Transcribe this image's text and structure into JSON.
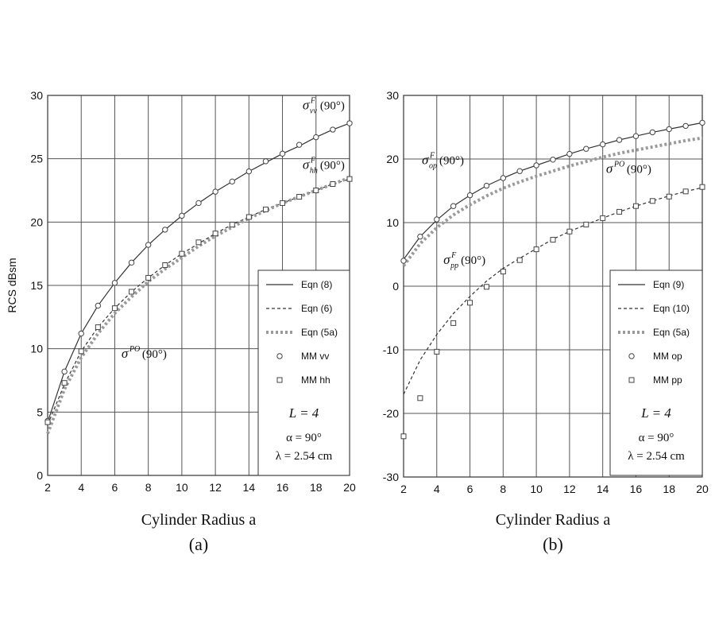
{
  "chart_data": [
    {
      "type": "line",
      "panel_label": "(a)",
      "xlabel": "Cylinder Radius a",
      "ylabel": "RCS dBsm",
      "xlim": [
        2,
        20
      ],
      "ylim": [
        0,
        30
      ],
      "xticks": [
        "2",
        "4",
        "6",
        "8",
        "10",
        "12",
        "14",
        "16",
        "18",
        "20"
      ],
      "yticks": [
        "0",
        "5",
        "10",
        "15",
        "20",
        "25",
        "30"
      ],
      "grid": true,
      "legend_position": "bottom-right",
      "series": [
        {
          "name": "Eqn (8)",
          "style": "solid",
          "color": "#333333",
          "x": [
            2,
            3,
            4,
            5,
            6,
            7,
            8,
            9,
            10,
            11,
            12,
            13,
            14,
            15,
            16,
            17,
            18,
            19,
            20
          ],
          "values": [
            4.2,
            8.2,
            11.2,
            13.4,
            15.2,
            16.8,
            18.2,
            19.4,
            20.5,
            21.5,
            22.4,
            23.2,
            24.0,
            24.7,
            25.4,
            26.0,
            26.7,
            27.3,
            27.8
          ]
        },
        {
          "name": "Eqn (6)",
          "style": "dashed",
          "color": "#333333",
          "x": [
            2,
            3,
            4,
            5,
            6,
            7,
            8,
            9,
            10,
            11,
            12,
            13,
            14,
            15,
            16,
            17,
            18,
            19,
            20
          ],
          "values": [
            4.0,
            7.2,
            9.8,
            11.7,
            13.2,
            14.5,
            15.6,
            16.6,
            17.5,
            18.3,
            19.1,
            19.8,
            20.4,
            21.0,
            21.5,
            22.0,
            22.5,
            23.0,
            23.4
          ]
        },
        {
          "name": "Eqn (5a)",
          "style": "dotted",
          "color": "#9a9a9a",
          "x": [
            2,
            3,
            4,
            5,
            6,
            7,
            8,
            9,
            10,
            11,
            12,
            13,
            14,
            15,
            16,
            17,
            18,
            19,
            20
          ],
          "values": [
            3.3,
            6.8,
            9.3,
            11.2,
            12.8,
            14.1,
            15.3,
            16.3,
            17.2,
            18.1,
            18.9,
            19.6,
            20.3,
            20.9,
            21.5,
            22.0,
            22.5,
            23.0,
            23.5
          ]
        },
        {
          "name": "MM vv",
          "style": "marker-circle",
          "color": "#444444",
          "x": [
            2,
            3,
            4,
            5,
            6,
            7,
            8,
            9,
            10,
            11,
            12,
            13,
            14,
            15,
            16,
            17,
            18,
            19,
            20
          ],
          "values": [
            4.3,
            8.2,
            11.2,
            13.4,
            15.2,
            16.8,
            18.2,
            19.4,
            20.5,
            21.5,
            22.4,
            23.2,
            24.0,
            24.8,
            25.4,
            26.1,
            26.7,
            27.3,
            27.8
          ]
        },
        {
          "name": "MM hh",
          "style": "marker-square",
          "color": "#444444",
          "x": [
            2,
            3,
            4,
            5,
            6,
            7,
            8,
            9,
            10,
            11,
            12,
            13,
            14,
            15,
            16,
            17,
            18,
            19,
            20
          ],
          "values": [
            4.2,
            7.3,
            9.8,
            11.7,
            13.2,
            14.5,
            15.6,
            16.6,
            17.5,
            18.4,
            19.1,
            19.8,
            20.4,
            21.0,
            21.5,
            22.0,
            22.5,
            23.0,
            23.4
          ]
        }
      ],
      "annotations": [
        {
          "sym": "σ",
          "sup": "F",
          "sub": "vv",
          "arg": "(90°)",
          "at": [
            17.2,
            28.9
          ]
        },
        {
          "sym": "σ",
          "sup": "F",
          "sub": "hh",
          "arg": "(90°)",
          "at": [
            17.2,
            24.2
          ]
        },
        {
          "sym": "σ",
          "sup": "PO",
          "sub": "",
          "arg": "(90°)",
          "at": [
            6.4,
            9.3
          ]
        }
      ],
      "params": {
        "L": "L = 4",
        "alpha": "α = 90°",
        "lambda": "λ = 2.54 cm"
      }
    },
    {
      "type": "line",
      "panel_label": "(b)",
      "xlabel": "Cylinder Radius a",
      "ylabel": "",
      "xlim": [
        2,
        20
      ],
      "ylim": [
        -30,
        30
      ],
      "xticks": [
        "2",
        "4",
        "6",
        "8",
        "10",
        "12",
        "14",
        "16",
        "18",
        "20"
      ],
      "yticks": [
        "-30",
        "-20",
        "-10",
        "0",
        "10",
        "20",
        "30"
      ],
      "grid": true,
      "legend_position": "bottom-right",
      "series": [
        {
          "name": "Eqn (9)",
          "style": "solid",
          "color": "#333333",
          "x": [
            2,
            3,
            4,
            5,
            6,
            7,
            8,
            9,
            10,
            11,
            12,
            13,
            14,
            15,
            16,
            17,
            18,
            19,
            20
          ],
          "values": [
            4.2,
            7.8,
            10.4,
            12.6,
            14.3,
            15.8,
            17.0,
            18.1,
            19.0,
            19.9,
            20.8,
            21.6,
            22.3,
            23.0,
            23.6,
            24.2,
            24.7,
            25.2,
            25.7
          ]
        },
        {
          "name": "Eqn (10)",
          "style": "dashed",
          "color": "#333333",
          "x": [
            2,
            3,
            4,
            5,
            6,
            7,
            8,
            9,
            10,
            11,
            12,
            13,
            14,
            15,
            16,
            17,
            18,
            19,
            20
          ],
          "values": [
            -17.0,
            -11.6,
            -7.6,
            -4.3,
            -1.6,
            0.8,
            2.8,
            4.4,
            5.9,
            7.4,
            8.6,
            9.7,
            10.7,
            11.7,
            12.6,
            13.4,
            14.2,
            14.9,
            15.5
          ]
        },
        {
          "name": "Eqn (5a)",
          "style": "dotted",
          "color": "#9a9a9a",
          "x": [
            2,
            3,
            4,
            5,
            6,
            7,
            8,
            9,
            10,
            11,
            12,
            13,
            14,
            15,
            16,
            17,
            18,
            19,
            20
          ],
          "values": [
            3.2,
            6.7,
            9.2,
            11.2,
            12.8,
            14.2,
            15.4,
            16.4,
            17.3,
            18.1,
            18.9,
            19.6,
            20.3,
            20.9,
            21.4,
            21.9,
            22.4,
            22.9,
            23.3
          ]
        },
        {
          "name": "MM op",
          "style": "marker-circle",
          "color": "#444444",
          "x": [
            2,
            3,
            4,
            5,
            6,
            7,
            8,
            9,
            10,
            11,
            12,
            13,
            14,
            15,
            16,
            17,
            18,
            19,
            20
          ],
          "values": [
            4.0,
            7.8,
            10.5,
            12.6,
            14.3,
            15.8,
            17.0,
            18.1,
            19.0,
            19.9,
            20.8,
            21.6,
            22.3,
            23.0,
            23.6,
            24.2,
            24.7,
            25.2,
            25.7
          ]
        },
        {
          "name": "MM pp",
          "style": "marker-square",
          "color": "#444444",
          "x": [
            2,
            3,
            4,
            5,
            6,
            7,
            8,
            9,
            10,
            11,
            12,
            13,
            14,
            15,
            16,
            17,
            18,
            19,
            20
          ],
          "values": [
            -23.6,
            -17.6,
            -10.3,
            -5.8,
            -2.6,
            -0.1,
            2.3,
            4.1,
            5.8,
            7.3,
            8.6,
            9.7,
            10.7,
            11.7,
            12.6,
            13.4,
            14.1,
            14.9,
            15.6
          ]
        }
      ],
      "annotations": [
        {
          "sym": "σ",
          "sup": "F",
          "sub": "op",
          "arg": "(90°)",
          "at": [
            3.1,
            19.2
          ]
        },
        {
          "sym": "σ",
          "sup": "PO",
          "sub": "",
          "arg": "(90°)",
          "at": [
            14.2,
            17.8
          ]
        },
        {
          "sym": "σ",
          "sup": "F",
          "sub": "pp",
          "arg": "(90°)",
          "at": [
            4.4,
            3.5
          ]
        }
      ],
      "params": {
        "L": "L = 4",
        "alpha": "α = 90°",
        "lambda": "λ = 2.54 cm"
      }
    }
  ]
}
